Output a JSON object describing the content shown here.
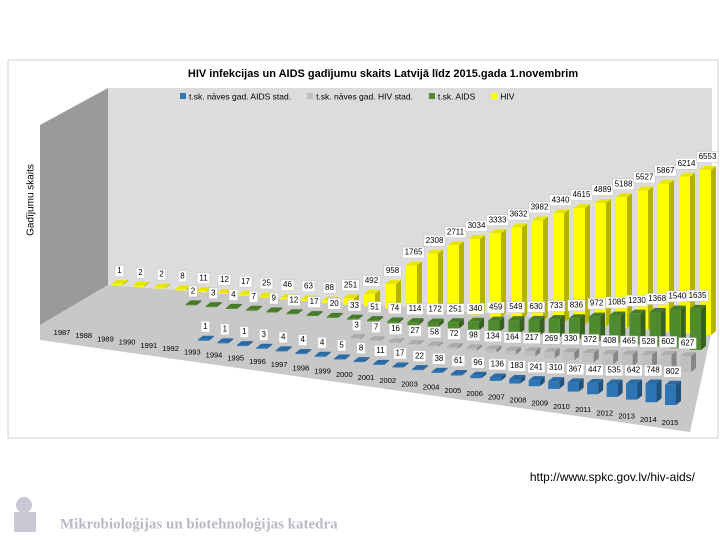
{
  "chart_data": {
    "type": "bar3d",
    "title": "HIV infekcijas un AIDS gadījumu skaits Latvijā līdz 2015.gada 1.novembrim",
    "ylabel": "Gadījumu skaits",
    "categories": [
      "1987",
      "1988",
      "1989",
      "1990",
      "1991",
      "1992",
      "1993",
      "1994",
      "1995",
      "1996",
      "1997",
      "1998",
      "1999",
      "2000",
      "2001",
      "2002",
      "2003",
      "2004",
      "2005",
      "2006",
      "2007",
      "2008",
      "2009",
      "2010",
      "2011",
      "2012",
      "2013",
      "2014",
      "2015"
    ],
    "series": [
      {
        "name": "t.sk. nāves gad. AIDS stad.",
        "color": "#2e75b6",
        "values": [
          null,
          null,
          null,
          null,
          1,
          1,
          1,
          3,
          4,
          4,
          4,
          5,
          8,
          11,
          17,
          22,
          38,
          61,
          96,
          136,
          183,
          241,
          310,
          367,
          447,
          535,
          642,
          748,
          802
        ]
      },
      {
        "name": "t.sk. nāves gad. HIV stad.",
        "color": "#bfbfbf",
        "values": [
          null,
          null,
          null,
          null,
          null,
          null,
          null,
          null,
          null,
          null,
          null,
          3,
          7,
          16,
          27,
          58,
          72,
          98,
          134,
          164,
          217,
          269,
          330,
          372,
          408,
          465,
          528,
          602,
          627
        ]
      },
      {
        "name": "t.sk. AIDS",
        "color": "#4e8a2e",
        "values": [
          null,
          null,
          null,
          2,
          3,
          4,
          7,
          9,
          12,
          17,
          20,
          33,
          51,
          74,
          114,
          172,
          251,
          340,
          459,
          549,
          630,
          733,
          836,
          972,
          1085,
          1230,
          1368,
          1540,
          1635
        ]
      },
      {
        "name": "HIV",
        "color": "#ffff00",
        "values": [
          1,
          2,
          2,
          8,
          11,
          12,
          17,
          25,
          46,
          63,
          88,
          251,
          492,
          958,
          1765,
          2308,
          2711,
          3034,
          3333,
          3632,
          3982,
          4340,
          4615,
          4889,
          5188,
          5527,
          5867,
          6214,
          6553
        ]
      }
    ]
  },
  "source": "http://www.spkc.gov.lv/hiv-aids/",
  "footer": "Mikrobioloģijas un biotehnoloģijas katedra"
}
